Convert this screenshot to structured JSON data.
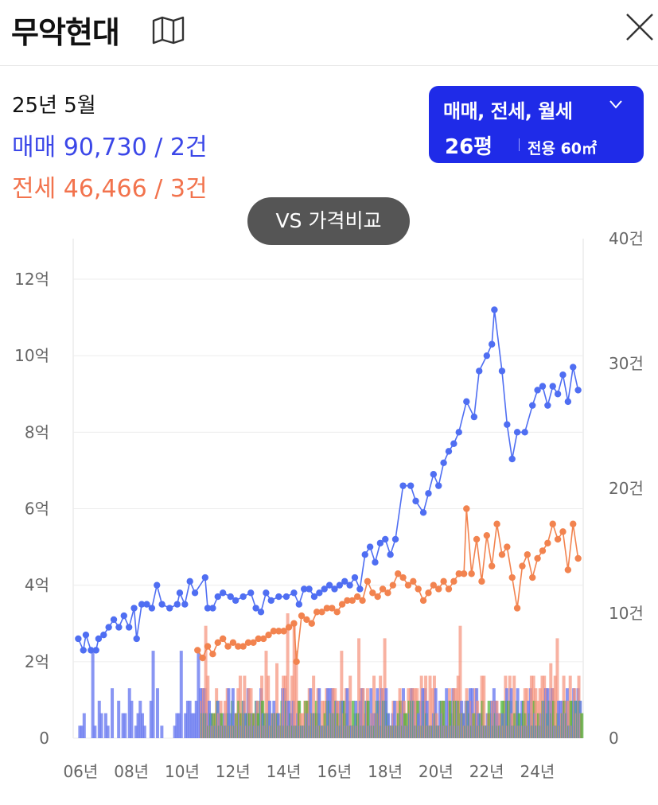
{
  "header": {
    "title": "무악현대",
    "map_icon": "map-icon",
    "close_icon": "close-icon"
  },
  "summary": {
    "period": "25년 5월",
    "sale": "매매 90,730 / 2건",
    "jeonse": "전세 46,466 / 3건"
  },
  "filter": {
    "types": "매매, 전세, 월세",
    "pyeong": "26평",
    "area": "전용 60㎡"
  },
  "compare_button": "VS 가격비교",
  "colors": {
    "sale": "#4f6ef2",
    "jeonse": "#f2834f",
    "monthly": "#3fae2a",
    "accent": "#1f2be8"
  },
  "chart_data": {
    "type": "line",
    "x_unit": "year",
    "xlim": [
      2005.8,
      2025.9
    ],
    "y_left": {
      "unit": "억",
      "range": [
        0,
        13
      ],
      "ticks": [
        "0",
        "2억",
        "4억",
        "6억",
        "8억",
        "10억",
        "12억"
      ],
      "tick_values": [
        0,
        2,
        4,
        6,
        8,
        10,
        12
      ]
    },
    "y_right": {
      "unit": "건",
      "range": [
        0,
        40
      ],
      "ticks": [
        "0",
        "10건",
        "20건",
        "30건",
        "40건"
      ],
      "tick_values": [
        0,
        10,
        20,
        30,
        40
      ]
    },
    "x_ticks": [
      "06년",
      "08년",
      "10년",
      "12년",
      "14년",
      "16년",
      "18년",
      "20년",
      "22년",
      "24년"
    ],
    "x_tick_values": [
      2006,
      2008,
      2010,
      2012,
      2014,
      2016,
      2018,
      2020,
      2022,
      2024
    ],
    "grid": true,
    "series": [
      {
        "kind": "line",
        "axis": "left",
        "color": "#4f6ef2",
        "points": [
          [
            2006.0,
            2.6
          ],
          [
            2006.2,
            2.3
          ],
          [
            2006.3,
            2.7
          ],
          [
            2006.5,
            2.3
          ],
          [
            2006.7,
            2.3
          ],
          [
            2006.8,
            2.6
          ],
          [
            2007.0,
            2.7
          ],
          [
            2007.2,
            2.9
          ],
          [
            2007.4,
            3.1
          ],
          [
            2007.6,
            2.9
          ],
          [
            2007.8,
            3.2
          ],
          [
            2008.0,
            2.9
          ],
          [
            2008.2,
            3.4
          ],
          [
            2008.3,
            2.6
          ],
          [
            2008.5,
            3.5
          ],
          [
            2008.7,
            3.5
          ],
          [
            2008.9,
            3.4
          ],
          [
            2009.1,
            4.0
          ],
          [
            2009.3,
            3.5
          ],
          [
            2009.6,
            3.4
          ],
          [
            2009.9,
            3.5
          ],
          [
            2010.0,
            3.8
          ],
          [
            2010.2,
            3.5
          ],
          [
            2010.4,
            4.1
          ],
          [
            2010.6,
            3.8
          ],
          [
            2011.0,
            4.2
          ],
          [
            2011.1,
            3.4
          ],
          [
            2011.3,
            3.4
          ],
          [
            2011.5,
            3.7
          ],
          [
            2011.7,
            3.8
          ],
          [
            2012.0,
            3.7
          ],
          [
            2012.2,
            3.6
          ],
          [
            2012.5,
            3.7
          ],
          [
            2012.8,
            3.8
          ],
          [
            2013.0,
            3.4
          ],
          [
            2013.2,
            3.3
          ],
          [
            2013.4,
            3.8
          ],
          [
            2013.6,
            3.6
          ],
          [
            2013.9,
            3.7
          ],
          [
            2014.2,
            3.7
          ],
          [
            2014.5,
            3.8
          ],
          [
            2014.7,
            3.5
          ],
          [
            2014.9,
            3.9
          ],
          [
            2015.1,
            3.9
          ],
          [
            2015.3,
            3.7
          ],
          [
            2015.5,
            3.8
          ],
          [
            2015.7,
            3.9
          ],
          [
            2015.9,
            4.0
          ],
          [
            2016.1,
            3.9
          ],
          [
            2016.3,
            4.0
          ],
          [
            2016.5,
            4.1
          ],
          [
            2016.7,
            4.0
          ],
          [
            2016.9,
            4.2
          ],
          [
            2017.1,
            3.9
          ],
          [
            2017.3,
            4.8
          ],
          [
            2017.5,
            5.0
          ],
          [
            2017.7,
            4.6
          ],
          [
            2017.9,
            5.1
          ],
          [
            2018.1,
            5.2
          ],
          [
            2018.3,
            4.8
          ],
          [
            2018.5,
            5.2
          ],
          [
            2018.8,
            6.6
          ],
          [
            2019.1,
            6.6
          ],
          [
            2019.3,
            6.2
          ],
          [
            2019.6,
            5.9
          ],
          [
            2019.8,
            6.4
          ],
          [
            2020.0,
            6.9
          ],
          [
            2020.2,
            6.6
          ],
          [
            2020.4,
            7.2
          ],
          [
            2020.6,
            7.5
          ],
          [
            2020.8,
            7.7
          ],
          [
            2021.0,
            8.0
          ],
          [
            2021.3,
            8.8
          ],
          [
            2021.6,
            8.4
          ],
          [
            2021.8,
            9.6
          ],
          [
            2022.1,
            10.0
          ],
          [
            2022.3,
            10.3
          ],
          [
            2022.4,
            11.2
          ],
          [
            2022.7,
            9.6
          ],
          [
            2022.9,
            8.2
          ],
          [
            2023.1,
            7.3
          ],
          [
            2023.3,
            8.0
          ],
          [
            2023.6,
            8.0
          ],
          [
            2023.9,
            8.7
          ],
          [
            2024.1,
            9.1
          ],
          [
            2024.3,
            9.2
          ],
          [
            2024.5,
            8.7
          ],
          [
            2024.7,
            9.2
          ],
          [
            2024.9,
            9.0
          ],
          [
            2025.1,
            9.5
          ],
          [
            2025.3,
            8.8
          ],
          [
            2025.5,
            9.7
          ],
          [
            2025.7,
            9.1
          ]
        ]
      },
      {
        "kind": "line",
        "axis": "left",
        "color": "#f2834f",
        "points": [
          [
            2010.7,
            2.3
          ],
          [
            2010.9,
            2.1
          ],
          [
            2011.1,
            2.4
          ],
          [
            2011.3,
            2.2
          ],
          [
            2011.5,
            2.5
          ],
          [
            2011.7,
            2.6
          ],
          [
            2011.9,
            2.4
          ],
          [
            2012.1,
            2.5
          ],
          [
            2012.3,
            2.4
          ],
          [
            2012.5,
            2.4
          ],
          [
            2012.7,
            2.5
          ],
          [
            2012.9,
            2.5
          ],
          [
            2013.1,
            2.6
          ],
          [
            2013.3,
            2.6
          ],
          [
            2013.5,
            2.7
          ],
          [
            2013.7,
            2.8
          ],
          [
            2013.9,
            2.8
          ],
          [
            2014.1,
            2.8
          ],
          [
            2014.3,
            2.9
          ],
          [
            2014.5,
            3.0
          ],
          [
            2014.6,
            2.0
          ],
          [
            2014.8,
            3.2
          ],
          [
            2015.0,
            3.1
          ],
          [
            2015.2,
            3.0
          ],
          [
            2015.4,
            3.3
          ],
          [
            2015.6,
            3.3
          ],
          [
            2015.8,
            3.4
          ],
          [
            2016.0,
            3.4
          ],
          [
            2016.2,
            3.3
          ],
          [
            2016.4,
            3.5
          ],
          [
            2016.6,
            3.6
          ],
          [
            2016.8,
            3.6
          ],
          [
            2017.0,
            3.7
          ],
          [
            2017.2,
            3.6
          ],
          [
            2017.4,
            4.1
          ],
          [
            2017.6,
            3.8
          ],
          [
            2017.8,
            3.7
          ],
          [
            2018.0,
            3.9
          ],
          [
            2018.2,
            3.8
          ],
          [
            2018.4,
            4.0
          ],
          [
            2018.6,
            4.3
          ],
          [
            2018.8,
            4.2
          ],
          [
            2019.0,
            4.0
          ],
          [
            2019.2,
            4.1
          ],
          [
            2019.4,
            3.9
          ],
          [
            2019.6,
            3.6
          ],
          [
            2019.8,
            3.8
          ],
          [
            2020.0,
            4.0
          ],
          [
            2020.2,
            3.9
          ],
          [
            2020.4,
            4.1
          ],
          [
            2020.6,
            3.9
          ],
          [
            2020.8,
            4.1
          ],
          [
            2021.0,
            4.3
          ],
          [
            2021.2,
            4.3
          ],
          [
            2021.3,
            6.0
          ],
          [
            2021.5,
            4.3
          ],
          [
            2021.7,
            5.2
          ],
          [
            2021.9,
            4.1
          ],
          [
            2022.1,
            5.3
          ],
          [
            2022.3,
            4.5
          ],
          [
            2022.5,
            5.6
          ],
          [
            2022.7,
            4.8
          ],
          [
            2022.9,
            5.0
          ],
          [
            2023.1,
            4.2
          ],
          [
            2023.3,
            3.4
          ],
          [
            2023.5,
            4.5
          ],
          [
            2023.7,
            4.8
          ],
          [
            2023.9,
            4.2
          ],
          [
            2024.1,
            4.7
          ],
          [
            2024.3,
            4.9
          ],
          [
            2024.5,
            5.1
          ],
          [
            2024.7,
            5.6
          ],
          [
            2024.9,
            5.2
          ],
          [
            2025.1,
            5.4
          ],
          [
            2025.3,
            4.4
          ],
          [
            2025.5,
            5.6
          ],
          [
            2025.7,
            4.7
          ]
        ]
      }
    ]
  }
}
